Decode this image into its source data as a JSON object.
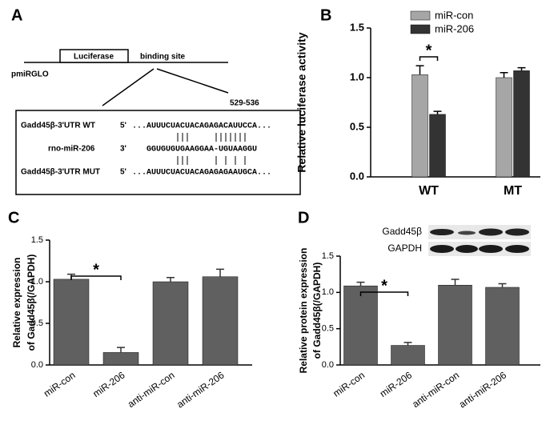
{
  "diagram": {
    "panel_label": "A",
    "box_label": "Luciferase",
    "site_label": "binding site",
    "vector": "pmiRGLO",
    "position": "529-536",
    "rows": [
      {
        "name": "Gadd45β-3'UTR WT",
        "end": "5'",
        "sequence": "...AUUUCUACUACAGAGACAUUCCA..."
      },
      {
        "name": "rno-miR-206",
        "end": "3'",
        "sequence": "GGUGUGUGAAGGAA-UGUAAGGU"
      },
      {
        "name": "Gadd45β-3'UTR MUT",
        "end": "5'",
        "sequence": "...AUUUCUACUACAGAGAGAAUGCA..."
      }
    ]
  },
  "chart_data": [
    {
      "type": "grouped_bar",
      "panel_label": "B",
      "y_label": [
        "Relative luciferase activity"
      ],
      "annotation": "*",
      "categories": [
        "WT",
        "MT"
      ],
      "series": [
        {
          "name": "miR-con",
          "color": "#a6a6a6",
          "values": [
            1.03,
            1.0
          ],
          "errors": [
            0.09,
            0.05
          ]
        },
        {
          "name": "miR-206",
          "color": "#333333",
          "values": [
            0.63,
            1.07
          ],
          "errors": [
            0.03,
            0.03
          ]
        }
      ],
      "ylim": [
        0,
        1.5
      ],
      "yticks": [
        {
          "value": 0,
          "label": "0.0"
        },
        {
          "value": 0.5,
          "label": "0.5"
        },
        {
          "value": 1,
          "label": "1.0"
        },
        {
          "value": 1.5,
          "label": "1.5"
        }
      ]
    },
    {
      "type": "bar",
      "panel_label": "C",
      "y_label": [
        "Relative expression",
        "of Gadd45β(/GAPDH)"
      ],
      "annotation": "*",
      "categories": [
        "miR-con",
        "miR-206",
        "anti-miR-con",
        "anti-miR-206"
      ],
      "color": "#606060",
      "values": [
        1.03,
        0.15,
        1.0,
        1.06
      ],
      "errors": [
        0.06,
        0.06,
        0.05,
        0.09
      ],
      "ylim": [
        0,
        1.5
      ],
      "yticks": [
        {
          "value": 0,
          "label": "0.0"
        },
        {
          "value": 0.5,
          "label": "0.5"
        },
        {
          "value": 1,
          "label": "1.0"
        },
        {
          "value": 1.5,
          "label": "1.5"
        }
      ]
    },
    {
      "type": "bar",
      "panel_label": "D",
      "y_label": [
        "Relative protein expression",
        "of Gadd45β(/GAPDH)"
      ],
      "annotation": "*",
      "blot_labels": [
        "Gadd45β",
        "GAPDH"
      ],
      "categories": [
        "miR-con",
        "miR-206",
        "anti-miR-con",
        "anti-miR-206"
      ],
      "color": "#606060",
      "values": [
        1.09,
        0.27,
        1.1,
        1.07
      ],
      "errors": [
        0.05,
        0.04,
        0.08,
        0.05
      ],
      "ylim": [
        0,
        1.5
      ],
      "yticks": [
        {
          "value": 0,
          "label": "0.0"
        },
        {
          "value": 0.5,
          "label": "0.5"
        },
        {
          "value": 1,
          "label": "1.0"
        },
        {
          "value": 1.5,
          "label": "1.5"
        }
      ]
    }
  ]
}
